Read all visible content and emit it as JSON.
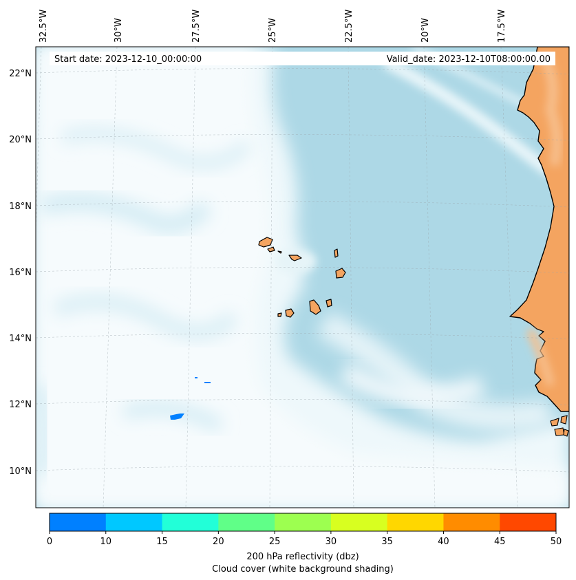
{
  "header": {
    "start_date": "Start date: 2023-12-10_00:00:00",
    "valid_date": "Valid_date: 2023-12-10T08:00:00.00"
  },
  "axes": {
    "lon_labels": [
      "32.5°W",
      "30°W",
      "27.5°W",
      "25°W",
      "22.5°W",
      "20°W",
      "17.5°W"
    ],
    "lat_labels": [
      "22°N",
      "20°N",
      "18°N",
      "16°N",
      "14°N",
      "12°N",
      "10°N"
    ]
  },
  "colorbar": {
    "ticks": [
      "0",
      "10",
      "15",
      "20",
      "25",
      "30",
      "35",
      "40",
      "45",
      "50"
    ],
    "colors": [
      "#0080ff",
      "#00c8ff",
      "#22ffd8",
      "#60ff88",
      "#9dff50",
      "#d8ff20",
      "#ffd700",
      "#ff8c00",
      "#ff4800"
    ],
    "label_line1": "200 hPa reflectivity (dbz)",
    "label_line2": "Cloud cover (white background shading)"
  },
  "colors": {
    "ocean_clear": "#add8e6",
    "land": "#f4a460",
    "cloud": "#ffffff",
    "reflectivity_cells": "#0080ff"
  }
}
